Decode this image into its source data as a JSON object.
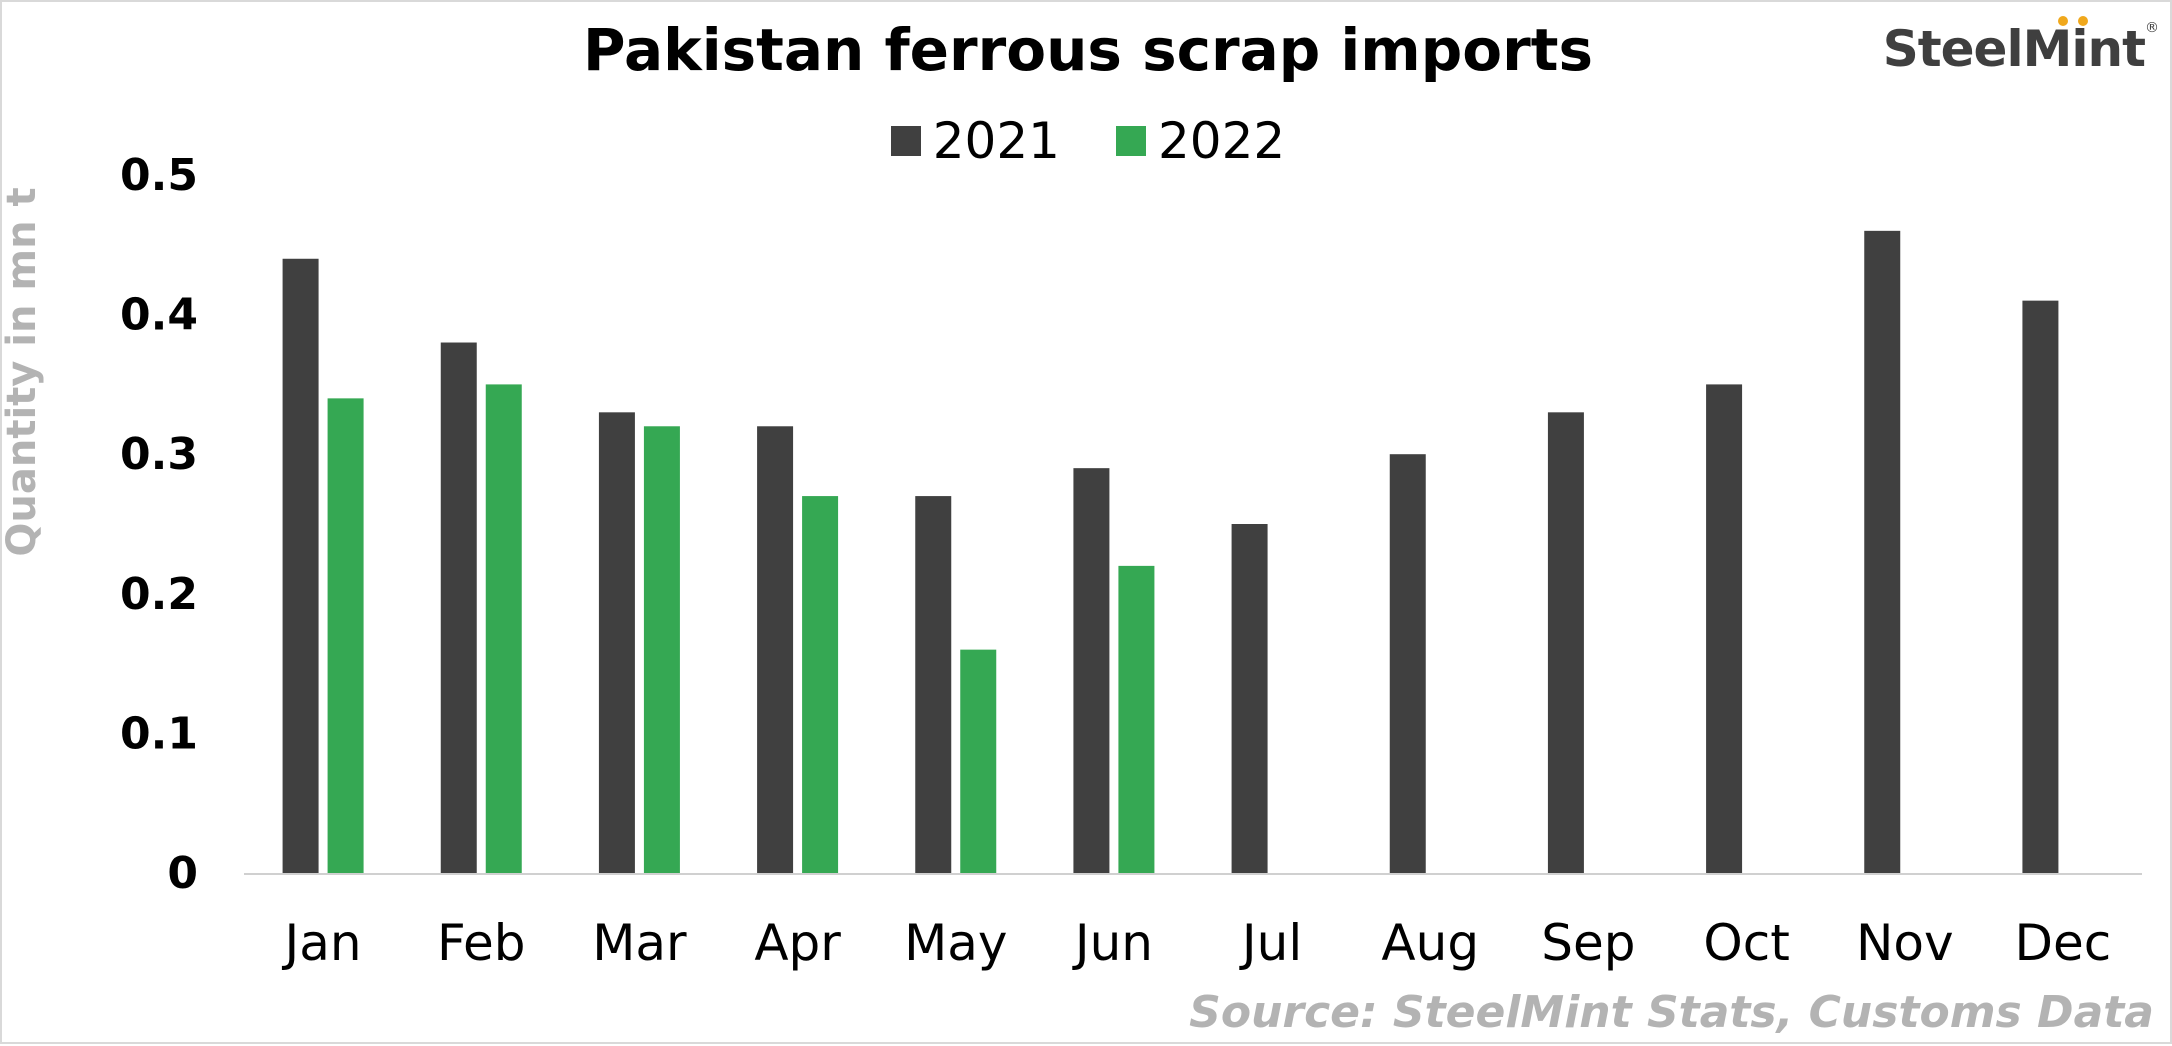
{
  "logo": {
    "text": "SteelMint",
    "reg": "®"
  },
  "source": "Source: SteelMint Stats, Customs Data",
  "colors": {
    "series_2021": "#404040",
    "series_2022": "#35a853",
    "logo_dots": "#f0a81c",
    "muted": "#b3b3b3"
  },
  "chart_data": {
    "type": "bar",
    "title": "Pakistan ferrous scrap imports",
    "xlabel": "",
    "ylabel": "Quantity in mn t",
    "categories": [
      "Jan",
      "Feb",
      "Mar",
      "Apr",
      "May",
      "Jun",
      "Jul",
      "Aug",
      "Sep",
      "Oct",
      "Nov",
      "Dec"
    ],
    "series": [
      {
        "name": "2021",
        "color": "#404040",
        "values": [
          0.44,
          0.38,
          0.33,
          0.32,
          0.27,
          0.29,
          0.25,
          0.3,
          0.33,
          0.35,
          0.46,
          0.41
        ]
      },
      {
        "name": "2022",
        "color": "#35a853",
        "values": [
          0.34,
          0.35,
          0.32,
          0.27,
          0.16,
          0.22,
          null,
          null,
          null,
          null,
          null,
          null
        ]
      }
    ],
    "yticks": [
      "0",
      "0.1",
      "0.2",
      "0.3",
      "0.4",
      "0.5"
    ],
    "ylim": [
      0,
      0.5
    ],
    "grid": false,
    "legend": "top-center"
  }
}
